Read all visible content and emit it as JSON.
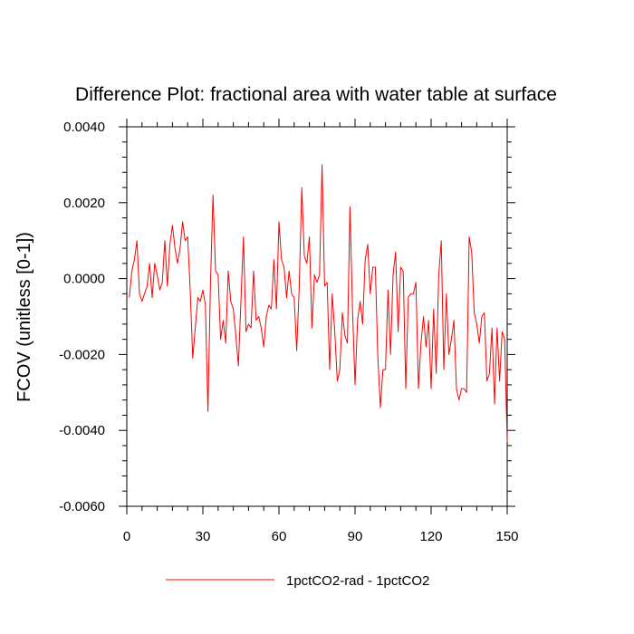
{
  "chart_data": {
    "type": "line",
    "title": "Difference Plot: fractional area with water table at surface",
    "xlabel": "",
    "ylabel": "FCOV  (unitless [0-1])",
    "xlim": [
      0,
      150
    ],
    "ylim": [
      -0.006,
      0.004
    ],
    "x_ticks": [
      0,
      30,
      60,
      90,
      120,
      150
    ],
    "x_tick_labels": [
      "0",
      "30",
      "60",
      "90",
      "120",
      "150"
    ],
    "y_ticks": [
      -0.006,
      -0.004,
      -0.002,
      0.0,
      0.002,
      0.004
    ],
    "y_tick_labels": [
      "-0.0060",
      "-0.0040",
      "-0.0020",
      "0.0000",
      "0.0020",
      "0.0040"
    ],
    "grid": false,
    "legend_position": "bottom-center",
    "series": [
      {
        "name": "1pctCO2-rad - 1pctCO2",
        "color": "#ff0000",
        "x": [
          1,
          2,
          3,
          4,
          5,
          6,
          7,
          8,
          9,
          10,
          11,
          12,
          13,
          14,
          15,
          16,
          17,
          18,
          19,
          20,
          21,
          22,
          23,
          24,
          25,
          26,
          27,
          28,
          29,
          30,
          31,
          32,
          33,
          34,
          35,
          36,
          37,
          38,
          39,
          40,
          41,
          42,
          43,
          44,
          45,
          46,
          47,
          48,
          49,
          50,
          51,
          52,
          53,
          54,
          55,
          56,
          57,
          58,
          59,
          60,
          61,
          62,
          63,
          64,
          65,
          66,
          67,
          68,
          69,
          70,
          71,
          72,
          73,
          74,
          75,
          76,
          77,
          78,
          79,
          80,
          81,
          82,
          83,
          84,
          85,
          86,
          87,
          88,
          89,
          90,
          91,
          92,
          93,
          94,
          95,
          96,
          97,
          98,
          99,
          100,
          101,
          102,
          103,
          104,
          105,
          106,
          107,
          108,
          109,
          110,
          111,
          112,
          113,
          114,
          115,
          116,
          117,
          118,
          119,
          120,
          121,
          122,
          123,
          124,
          125,
          126,
          127,
          128,
          129,
          130,
          131,
          132,
          133,
          134,
          135,
          136,
          137,
          138,
          139,
          140,
          141,
          142,
          143,
          144,
          145,
          146,
          147,
          148,
          149,
          150
        ],
        "values": [
          -0.0005,
          0.0002,
          0.0005,
          0.001,
          -0.0004,
          -0.0006,
          -0.0004,
          -0.0002,
          0.0004,
          -0.0005,
          0.0004,
          0.0001,
          -0.0003,
          -0.0001,
          0.001,
          -0.0002,
          0.0009,
          0.0014,
          0.0008,
          0.0004,
          0.0008,
          0.0015,
          0.001,
          0.0011,
          -0.0003,
          -0.0021,
          -0.0013,
          -0.0005,
          -0.0006,
          -0.0003,
          -0.0007,
          -0.0035,
          -0.0001,
          0.0022,
          0.0002,
          0.0001,
          -0.0016,
          -0.0011,
          -0.0017,
          0.0002,
          -0.0006,
          -0.0008,
          -0.0015,
          -0.0023,
          -0.0006,
          0.0011,
          -0.0014,
          -0.0012,
          -0.0013,
          0.0002,
          -0.0011,
          -0.001,
          -0.0013,
          -0.0018,
          -0.001,
          -0.0007,
          -0.0008,
          0.0005,
          -0.0008,
          0.0015,
          0.0005,
          0.0003,
          -0.0005,
          0.0002,
          -0.0004,
          -0.0005,
          -0.0019,
          -0.0002,
          0.0024,
          0.0006,
          0.0004,
          0.0011,
          -0.0013,
          0.0001,
          -0.0001,
          0.0001,
          0.003,
          -0.0002,
          -0.0001,
          -0.0024,
          -0.0004,
          -0.0014,
          -0.0027,
          -0.0024,
          -0.0009,
          -0.0015,
          -0.0017,
          0.0019,
          -0.0008,
          -0.0028,
          -0.0011,
          -0.0006,
          -0.0012,
          0.0005,
          0.0009,
          -0.0004,
          0.0003,
          0.0003,
          -0.0021,
          -0.0034,
          -0.0024,
          -0.0024,
          -0.0003,
          -0.002,
          0.0001,
          0.0007,
          -0.0014,
          0.0003,
          0.0002,
          -0.0029,
          -0.0005,
          -0.0004,
          -0.0004,
          -0.0001,
          -0.0029,
          -0.0017,
          -0.001,
          -0.0018,
          -0.0011,
          -0.0029,
          -0.0008,
          -0.0025,
          0.0001,
          0.001,
          -0.0024,
          -0.0004,
          -0.002,
          -0.0016,
          -0.0011,
          -0.0029,
          -0.0032,
          -0.0029,
          -0.0029,
          -0.003,
          0.0011,
          0.0007,
          -0.0009,
          -0.0012,
          -0.0017,
          -0.001,
          -0.0009,
          -0.0027,
          -0.0025,
          -0.0013,
          -0.0033,
          -0.0013,
          -0.0027,
          -0.0014,
          -0.0016,
          -0.0043
        ]
      }
    ]
  }
}
